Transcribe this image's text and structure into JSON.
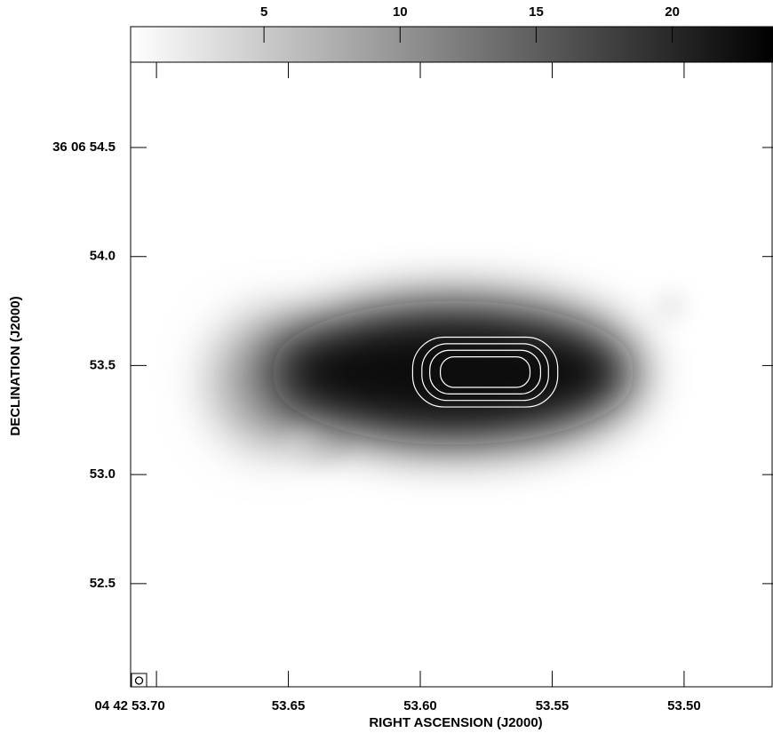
{
  "chart_data": {
    "type": "image",
    "xlabel": "RIGHT ASCENSION (J2000)",
    "ylabel": "DECLINATION (J2000)",
    "xlim": [
      53.7098,
      53.4663
    ],
    "ylim": [
      52.027,
      54.891
    ],
    "xticks": [
      {
        "value": 53.7,
        "label": "04 42 53.70"
      },
      53.65,
      {
        "value": 53.6,
        "label": "53.60"
      },
      53.55,
      {
        "value": 53.5,
        "label": "53.50"
      }
    ],
    "yticks": [
      {
        "value": 52.5,
        "label": "52.5"
      },
      {
        "value": 53.0,
        "label": "53.0"
      },
      {
        "value": 53.5,
        "label": "53.5"
      },
      {
        "value": 54.0,
        "label": "54.0"
      },
      {
        "value": 54.5,
        "label": "36 06 54.5"
      }
    ],
    "colorbar": {
      "lim": [
        0.1,
        23.7
      ],
      "ticks": [
        5,
        10,
        15,
        20
      ]
    },
    "components": [
      {
        "ra": 53.655,
        "dec": 53.427,
        "half_ra": 0.024,
        "half_dec": 0.3,
        "peak": 9
      },
      {
        "ra": 53.638,
        "dec": 53.14,
        "half_ra": 0.012,
        "half_dec": 0.1,
        "peak": 3
      },
      {
        "ra": 53.505,
        "dec": 53.773,
        "half_ra": 0.006,
        "half_dec": 0.07,
        "peak": 2
      },
      {
        "ra": 53.5875,
        "dec": 53.467,
        "half_ra": 0.07,
        "half_dec": 0.33,
        "peak": 23
      }
    ],
    "contours": [
      {
        "ra": 53.5754,
        "dec": 53.47,
        "half_ra": 0.0275,
        "half_dec": 0.16
      },
      {
        "ra": 53.5754,
        "dec": 53.47,
        "half_ra": 0.024,
        "half_dec": 0.13
      },
      {
        "ra": 53.5754,
        "dec": 53.47,
        "half_ra": 0.021,
        "half_dec": 0.1
      },
      {
        "ra": 53.5754,
        "dec": 53.47,
        "half_ra": 0.017,
        "half_dec": 0.07
      }
    ]
  }
}
